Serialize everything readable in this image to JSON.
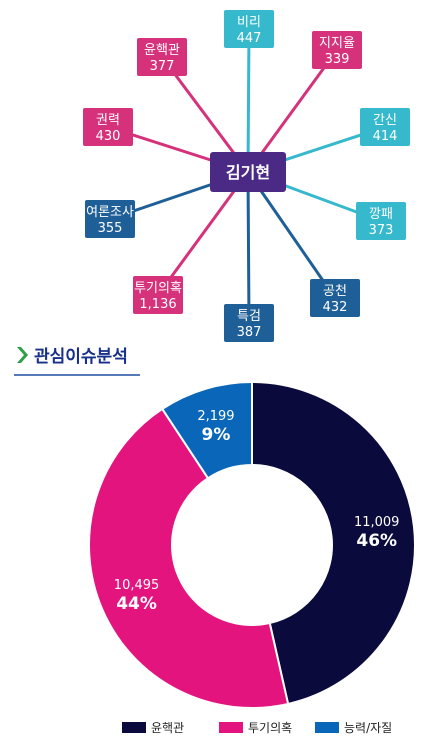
{
  "network": {
    "center": "김기현",
    "center_color": "#4b2a86",
    "nodes": [
      {
        "label": "비리",
        "value": "447",
        "color": "#36b8cd"
      },
      {
        "label": "지지율",
        "value": "339",
        "color": "#d6317b"
      },
      {
        "label": "간신",
        "value": "414",
        "color": "#36b8cd"
      },
      {
        "label": "깡패",
        "value": "373",
        "color": "#36b8cd"
      },
      {
        "label": "공천",
        "value": "432",
        "color": "#1f5f97"
      },
      {
        "label": "특검",
        "value": "387",
        "color": "#1f5f97"
      },
      {
        "label": "투기의혹",
        "value": "1,136",
        "color": "#d6317b"
      },
      {
        "label": "여론조사",
        "value": "355",
        "color": "#1f5f97"
      },
      {
        "label": "권력",
        "value": "430",
        "color": "#d6317b"
      },
      {
        "label": "윤핵관",
        "value": "377",
        "color": "#d6317b"
      }
    ]
  },
  "section": {
    "title": "관심이슈분석",
    "accent_color": "#2ea04a"
  },
  "chart_data": {
    "type": "pie",
    "donut": true,
    "slices": [
      {
        "name": "윤핵관",
        "value": 11009,
        "value_label": "11,009",
        "percent_label": "46%",
        "color": "#0b0a3d"
      },
      {
        "name": "투기의혹",
        "value": 10495,
        "value_label": "10,495",
        "percent_label": "44%",
        "color": "#e4147f"
      },
      {
        "name": "능력/자질",
        "value": 2199,
        "value_label": "2,199",
        "percent_label": "9%",
        "color": "#0a66b8"
      }
    ],
    "legend_position": "bottom"
  }
}
